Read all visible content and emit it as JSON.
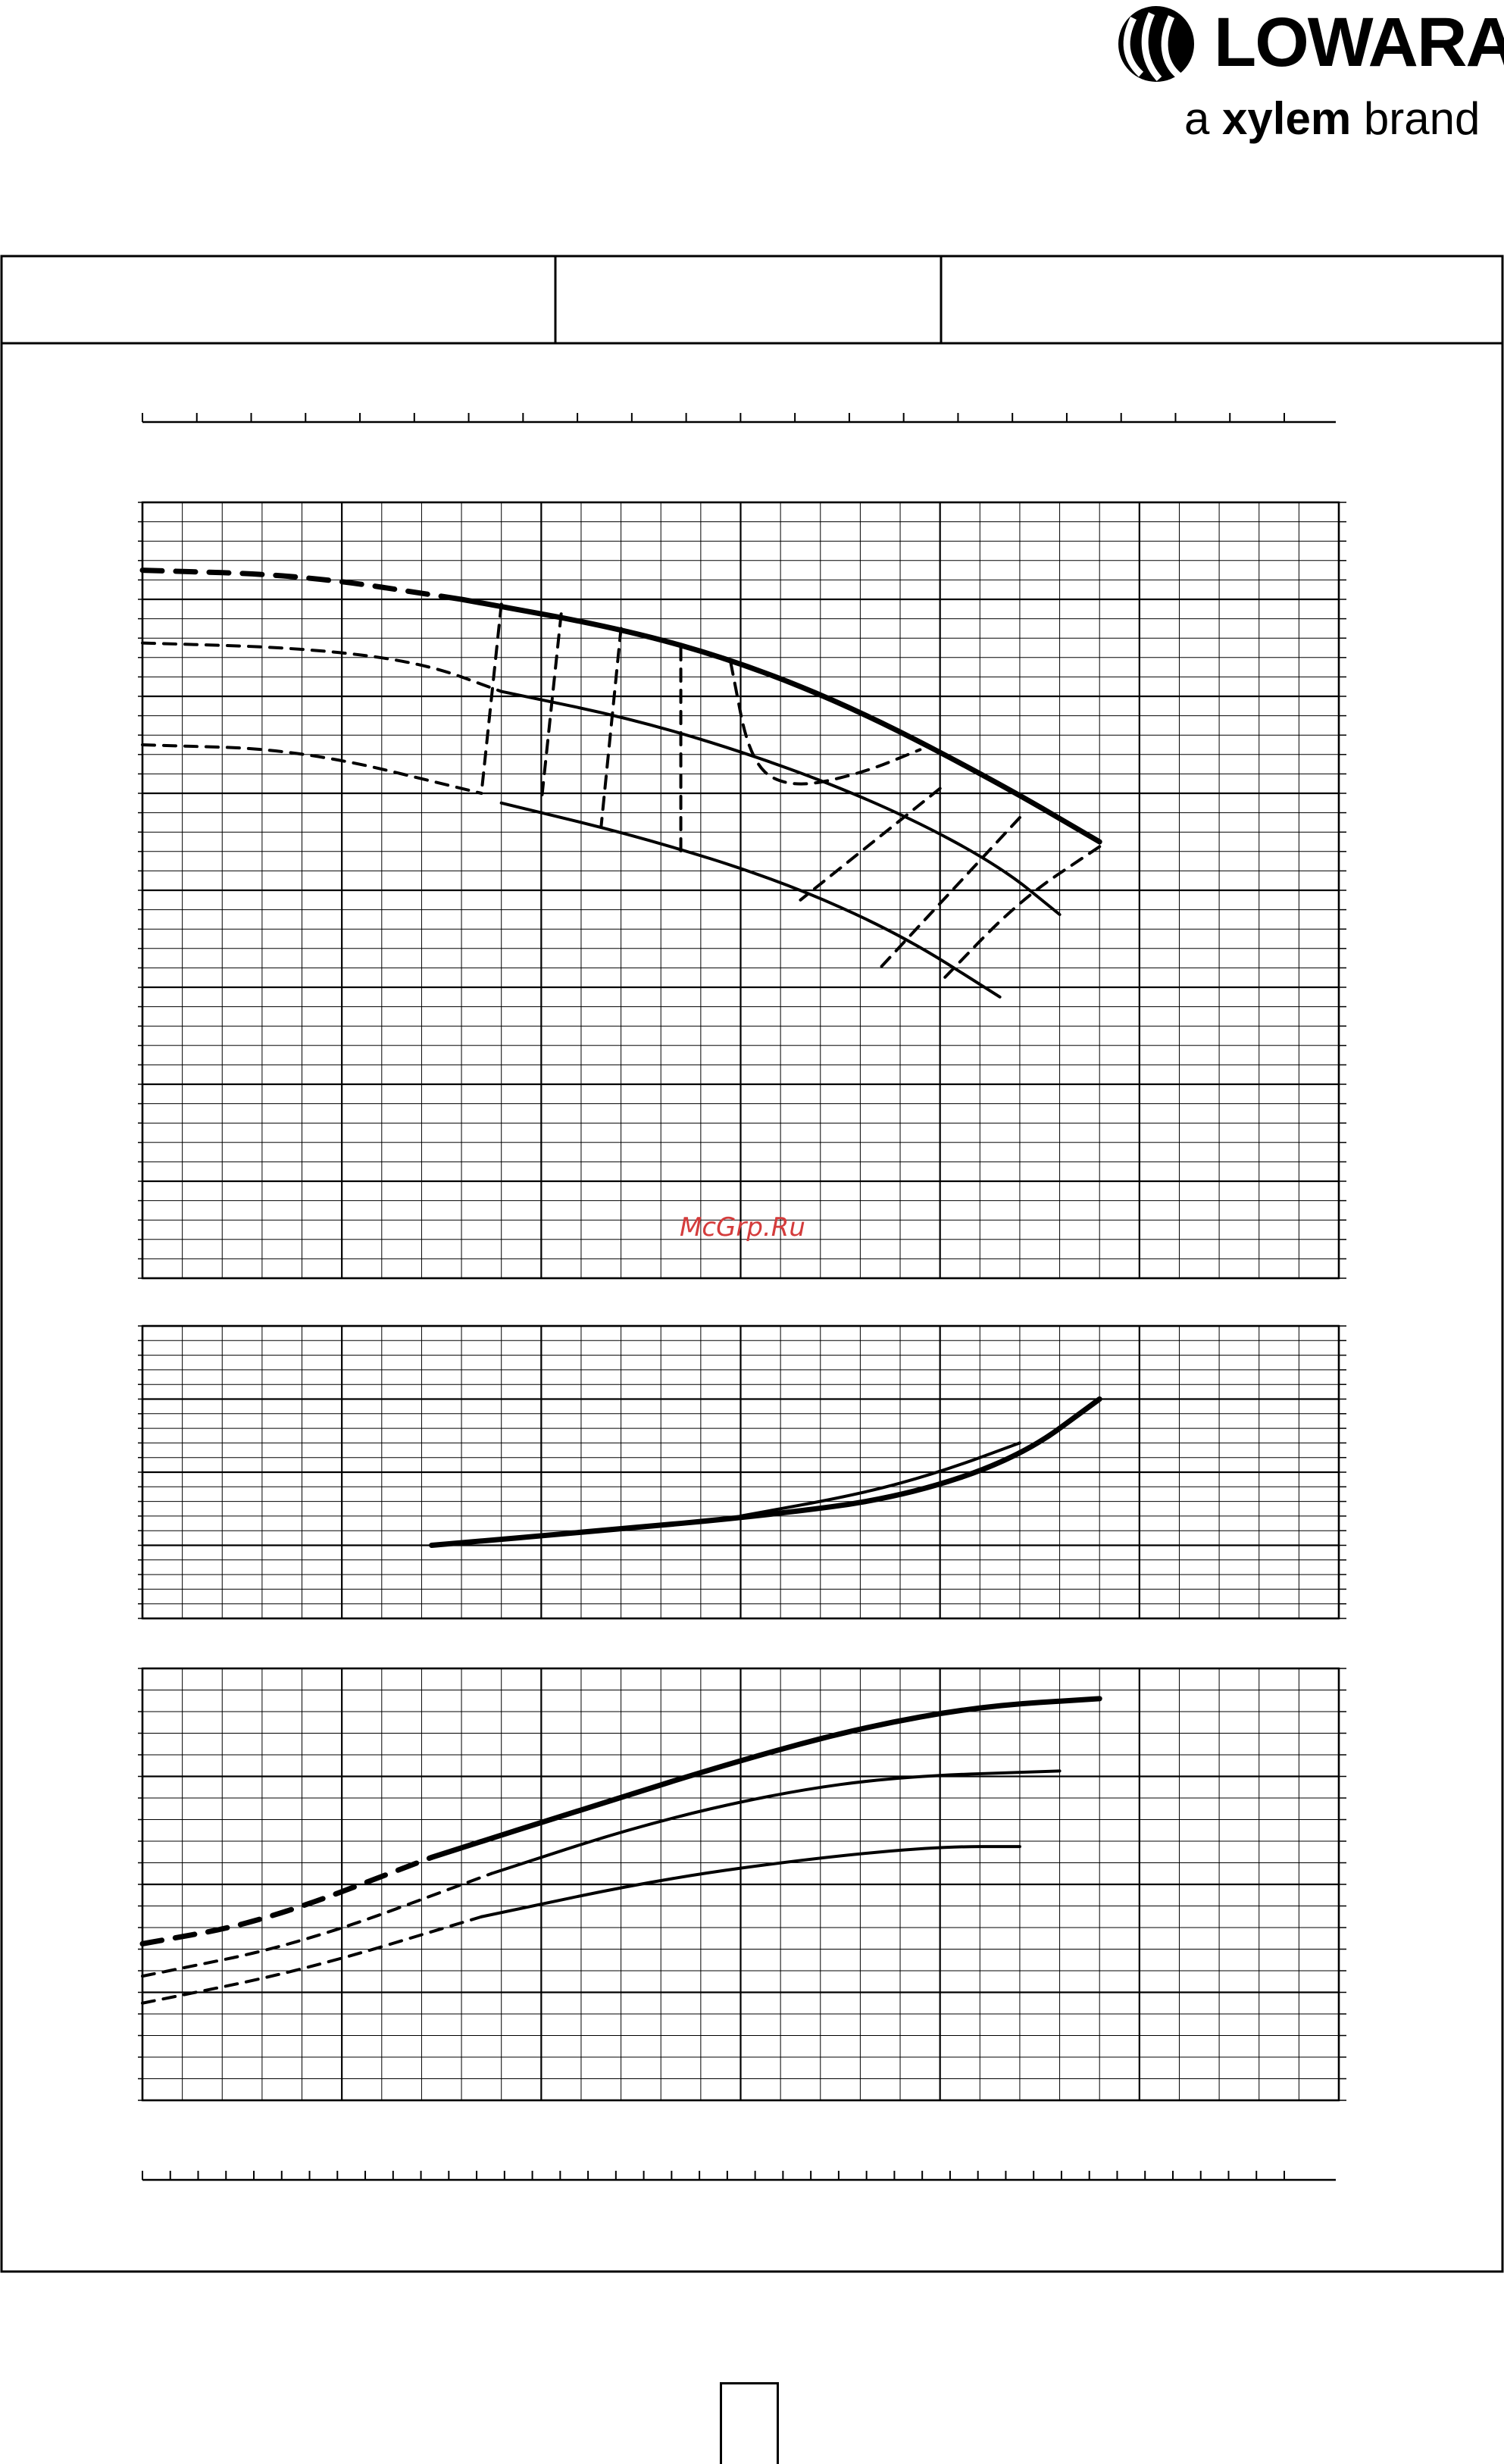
{
  "brand": {
    "name": "LOWARA",
    "tagline_prefix": "a",
    "tagline_brand": "xylem",
    "tagline_suffix": "brand"
  },
  "watermark": "McGrp.Ru",
  "colors": {
    "ink": "#000000",
    "paper": "#ffffff",
    "watermark": "#d43c3c"
  },
  "chart_data": [
    {
      "type": "line",
      "panel": "head",
      "xlim": [
        0,
        6
      ],
      "ylim": [
        0,
        8
      ],
      "series": [
        {
          "style": "solid-thick",
          "points": [
            [
              1.6,
              7.0
            ],
            [
              2.4,
              6.7
            ],
            [
              3.0,
              6.35
            ],
            [
              3.6,
              5.85
            ],
            [
              4.3,
              5.1
            ],
            [
              4.8,
              4.5
            ]
          ]
        },
        {
          "style": "dashed-thick",
          "points": [
            [
              0,
              7.3
            ],
            [
              0.8,
              7.25
            ],
            [
              1.6,
              7.0
            ]
          ]
        },
        {
          "style": "solid",
          "points": [
            [
              1.8,
              6.05
            ],
            [
              2.5,
              5.75
            ],
            [
              3.2,
              5.3
            ],
            [
              3.8,
              4.8
            ],
            [
              4.3,
              4.25
            ],
            [
              4.6,
              3.75
            ]
          ]
        },
        {
          "style": "dashed",
          "points": [
            [
              0,
              6.55
            ],
            [
              0.8,
              6.5
            ],
            [
              1.4,
              6.35
            ],
            [
              1.8,
              6.05
            ]
          ]
        },
        {
          "style": "solid",
          "points": [
            [
              1.8,
              4.9
            ],
            [
              2.5,
              4.55
            ],
            [
              3.2,
              4.1
            ],
            [
              3.8,
              3.55
            ],
            [
              4.3,
              2.9
            ]
          ]
        },
        {
          "style": "dashed",
          "points": [
            [
              0,
              5.5
            ],
            [
              0.8,
              5.45
            ],
            [
              1.7,
              5.0
            ]
          ]
        },
        {
          "style": "dashed",
          "points": [
            [
              1.8,
              6.95
            ],
            [
              1.7,
              5.0
            ]
          ]
        },
        {
          "style": "dashed",
          "points": [
            [
              2.1,
              6.85
            ],
            [
              2.0,
              4.9
            ]
          ]
        },
        {
          "style": "dashed",
          "points": [
            [
              2.4,
              6.7
            ],
            [
              2.3,
              4.65
            ]
          ]
        },
        {
          "style": "dashed",
          "points": [
            [
              2.7,
              6.5
            ],
            [
              2.7,
              4.4
            ]
          ]
        },
        {
          "style": "dashed",
          "points": [
            [
              2.95,
              6.35
            ],
            [
              3.05,
              5.3
            ],
            [
              3.25,
              5.05
            ],
            [
              3.6,
              5.2
            ],
            [
              3.9,
              5.45
            ]
          ]
        },
        {
          "style": "dashed",
          "points": [
            [
              4.0,
              5.05
            ],
            [
              3.3,
              3.9
            ]
          ]
        },
        {
          "style": "dashed",
          "points": [
            [
              4.4,
              4.75
            ],
            [
              3.7,
              3.2
            ]
          ]
        },
        {
          "style": "dashed",
          "points": [
            [
              4.8,
              4.45
            ],
            [
              4.4,
              3.9
            ],
            [
              4.0,
              3.05
            ]
          ]
        }
      ]
    },
    {
      "type": "line",
      "panel": "power",
      "xlim": [
        0,
        6
      ],
      "ylim": [
        0,
        4
      ],
      "series": [
        {
          "style": "solid-thick",
          "points": [
            [
              1.45,
              1.0
            ],
            [
              2.3,
              1.2
            ],
            [
              3.1,
              1.4
            ],
            [
              3.8,
              1.65
            ],
            [
              4.4,
              2.2
            ],
            [
              4.8,
              3.0
            ]
          ]
        },
        {
          "style": "solid",
          "points": [
            [
              3.0,
              1.4
            ],
            [
              3.6,
              1.7
            ],
            [
              4.0,
              2.0
            ],
            [
              4.4,
              2.4
            ]
          ]
        }
      ]
    },
    {
      "type": "line",
      "panel": "efficiency",
      "xlim": [
        0,
        6
      ],
      "ylim": [
        0,
        4
      ],
      "series": [
        {
          "style": "solid-thick",
          "points": [
            [
              1.45,
              2.25
            ],
            [
              2.3,
              2.75
            ],
            [
              3.0,
              3.15
            ],
            [
              3.6,
              3.45
            ],
            [
              4.2,
              3.65
            ],
            [
              4.8,
              3.72
            ]
          ]
        },
        {
          "style": "dashed-thick",
          "points": [
            [
              0,
              1.45
            ],
            [
              0.6,
              1.65
            ],
            [
              1.45,
              2.25
            ]
          ]
        },
        {
          "style": "solid",
          "points": [
            [
              1.75,
              2.1
            ],
            [
              2.5,
              2.55
            ],
            [
              3.2,
              2.85
            ],
            [
              3.8,
              3.0
            ],
            [
              4.6,
              3.05
            ]
          ]
        },
        {
          "style": "dashed",
          "points": [
            [
              0,
              1.15
            ],
            [
              0.8,
              1.45
            ],
            [
              1.75,
              2.1
            ]
          ]
        },
        {
          "style": "solid",
          "points": [
            [
              1.7,
              1.7
            ],
            [
              2.6,
              2.05
            ],
            [
              3.4,
              2.25
            ],
            [
              4.0,
              2.35
            ],
            [
              4.4,
              2.35
            ]
          ]
        },
        {
          "style": "dashed",
          "points": [
            [
              0,
              0.9
            ],
            [
              0.8,
              1.2
            ],
            [
              1.7,
              1.7
            ]
          ]
        }
      ]
    }
  ]
}
